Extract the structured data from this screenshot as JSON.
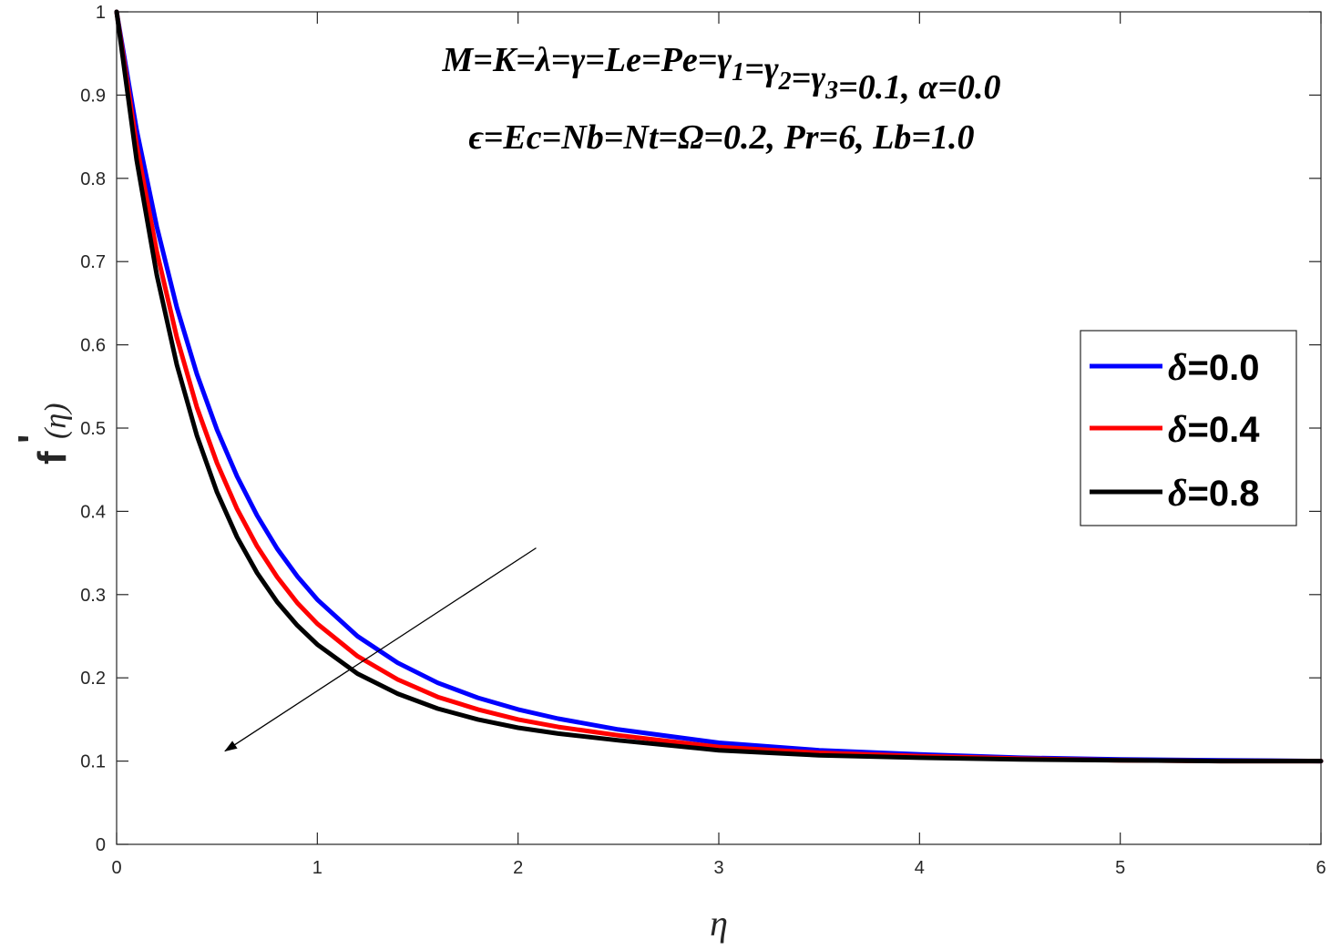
{
  "chart_data": {
    "type": "line",
    "xlabel": "η",
    "ylabel_main": "f",
    "ylabel_prime": "'",
    "ylabel_arg": "(η)",
    "xlim": [
      0,
      6
    ],
    "ylim": [
      0,
      1
    ],
    "xticks": [
      "0",
      "1",
      "2",
      "3",
      "4",
      "5",
      "6"
    ],
    "yticks": [
      "0",
      "0.1",
      "0.2",
      "0.3",
      "0.4",
      "0.5",
      "0.6",
      "0.7",
      "0.8",
      "0.9",
      "1"
    ],
    "grid": false,
    "legend_position": "right",
    "annotation_lines": [
      "M=K=λ=γ=Le=Pe=γ1=γ2=γ3=0.1, α=0.0",
      "ϵ=Ec=Nb=Nt=Ω=0.2, Pr=6, Lb=1.0"
    ],
    "arrow": {
      "from": [
        2.09,
        0.356
      ],
      "to": [
        0.54,
        0.112
      ],
      "meaning": "increasing δ"
    },
    "x": [
      0,
      0.1,
      0.2,
      0.3,
      0.4,
      0.5,
      0.6,
      0.7,
      0.8,
      0.9,
      1.0,
      1.2,
      1.4,
      1.6,
      1.8,
      2.0,
      2.2,
      2.5,
      3.0,
      3.5,
      4.0,
      4.5,
      5.0,
      5.5,
      6.0
    ],
    "series": [
      {
        "name": "δ=0.0",
        "color": "#0000ff",
        "values": [
          1.0,
          0.858,
          0.742,
          0.645,
          0.565,
          0.498,
          0.442,
          0.395,
          0.355,
          0.322,
          0.294,
          0.25,
          0.218,
          0.194,
          0.176,
          0.162,
          0.151,
          0.138,
          0.122,
          0.113,
          0.108,
          0.104,
          0.102,
          0.101,
          0.1
        ]
      },
      {
        "name": "δ=0.4",
        "color": "#ff0000",
        "values": [
          1.0,
          0.84,
          0.712,
          0.609,
          0.525,
          0.458,
          0.403,
          0.358,
          0.321,
          0.29,
          0.265,
          0.226,
          0.198,
          0.177,
          0.162,
          0.15,
          0.141,
          0.131,
          0.117,
          0.11,
          0.106,
          0.103,
          0.101,
          0.1,
          0.1
        ]
      },
      {
        "name": "δ=0.8",
        "color": "#000000",
        "values": [
          1.0,
          0.822,
          0.684,
          0.576,
          0.491,
          0.423,
          0.369,
          0.326,
          0.291,
          0.263,
          0.24,
          0.205,
          0.181,
          0.163,
          0.15,
          0.14,
          0.133,
          0.125,
          0.113,
          0.107,
          0.104,
          0.102,
          0.101,
          0.1,
          0.1
        ]
      }
    ],
    "legend": [
      {
        "symbol": "δ",
        "text": "=0.0"
      },
      {
        "symbol": "δ",
        "text": "=0.4"
      },
      {
        "symbol": "δ",
        "text": "=0.8"
      }
    ]
  }
}
